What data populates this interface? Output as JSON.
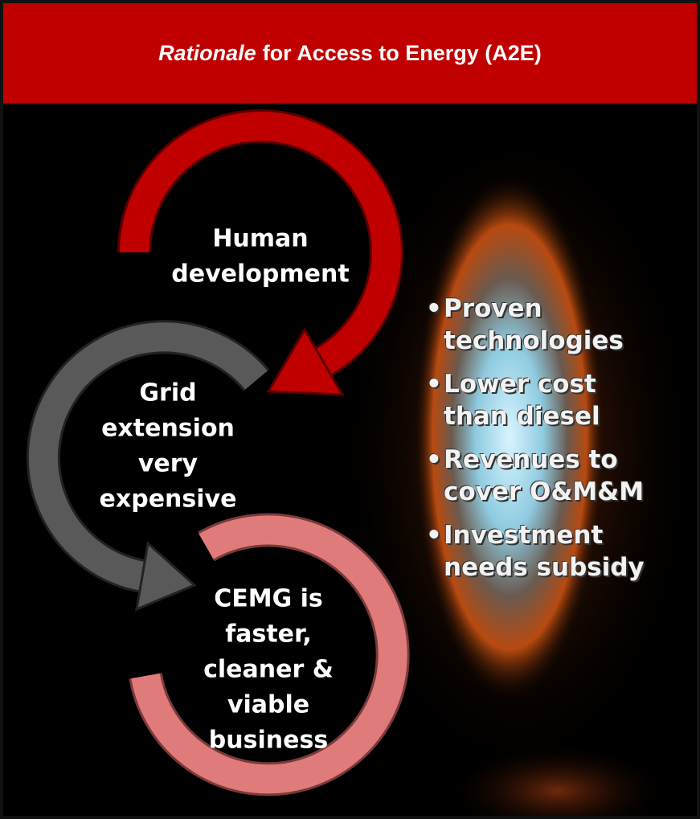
{
  "header": {
    "title_emphasis": "Rationale",
    "title_rest": "for Access to Energy (A2E)"
  },
  "nodes": [
    {
      "lines": [
        "Human",
        "development"
      ]
    },
    {
      "lines": [
        "Grid",
        "extension",
        "very",
        "expensive"
      ]
    },
    {
      "lines": [
        "CEMG is",
        "faster,",
        "cleaner &",
        "viable",
        "business"
      ]
    }
  ],
  "bullets": [
    "Proven technologies",
    "Lower cost than diesel",
    "Revenues to cover O&M&M",
    "Investment needs subsidy"
  ]
}
